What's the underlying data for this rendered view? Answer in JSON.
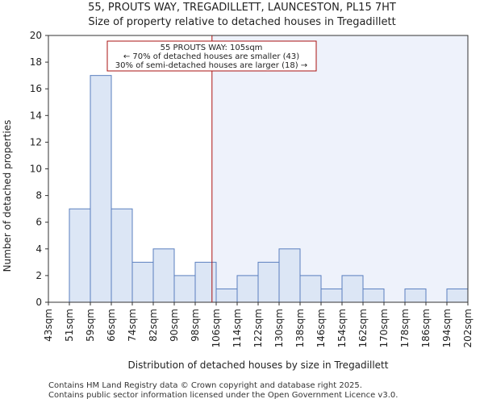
{
  "header": {
    "title": "55, PROUTS WAY, TREGADILLETT, LAUNCESTON, PL15 7HT",
    "subtitle": "Size of property relative to detached houses in Tregadillett"
  },
  "footer": {
    "line1": "Contains HM Land Registry data © Crown copyright and database right 2025.",
    "line2": "Contains public sector information licensed under the Open Government Licence v3.0."
  },
  "chart_data": {
    "type": "bar",
    "xlabel": "Distribution of detached houses by size in Tregadillett",
    "ylabel": "Number of detached properties",
    "ylim": [
      0,
      20
    ],
    "yticks": [
      0,
      2,
      4,
      6,
      8,
      10,
      12,
      14,
      16,
      18,
      20
    ],
    "bin_edges": [
      "43sqm",
      "51sqm",
      "59sqm",
      "66sqm",
      "74sqm",
      "82sqm",
      "90sqm",
      "98sqm",
      "106sqm",
      "114sqm",
      "122sqm",
      "130sqm",
      "138sqm",
      "146sqm",
      "154sqm",
      "162sqm",
      "170sqm",
      "178sqm",
      "186sqm",
      "194sqm",
      "202sqm"
    ],
    "values": [
      0,
      7,
      17,
      7,
      3,
      4,
      2,
      3,
      1,
      2,
      3,
      4,
      2,
      1,
      2,
      1,
      0,
      1,
      0,
      1
    ],
    "bar_color": "#dce6f5",
    "bar_edge_color": "#5a7fbf",
    "highlight_region_color": "#eef2fb",
    "marker": {
      "value_bin_index": 7.8,
      "color": "#aa1111",
      "annotation": {
        "line1": "55 PROUTS WAY: 105sqm",
        "line2": "← 70% of detached houses are smaller (43)",
        "line3": "30% of semi-detached houses are larger (18) →"
      }
    }
  }
}
